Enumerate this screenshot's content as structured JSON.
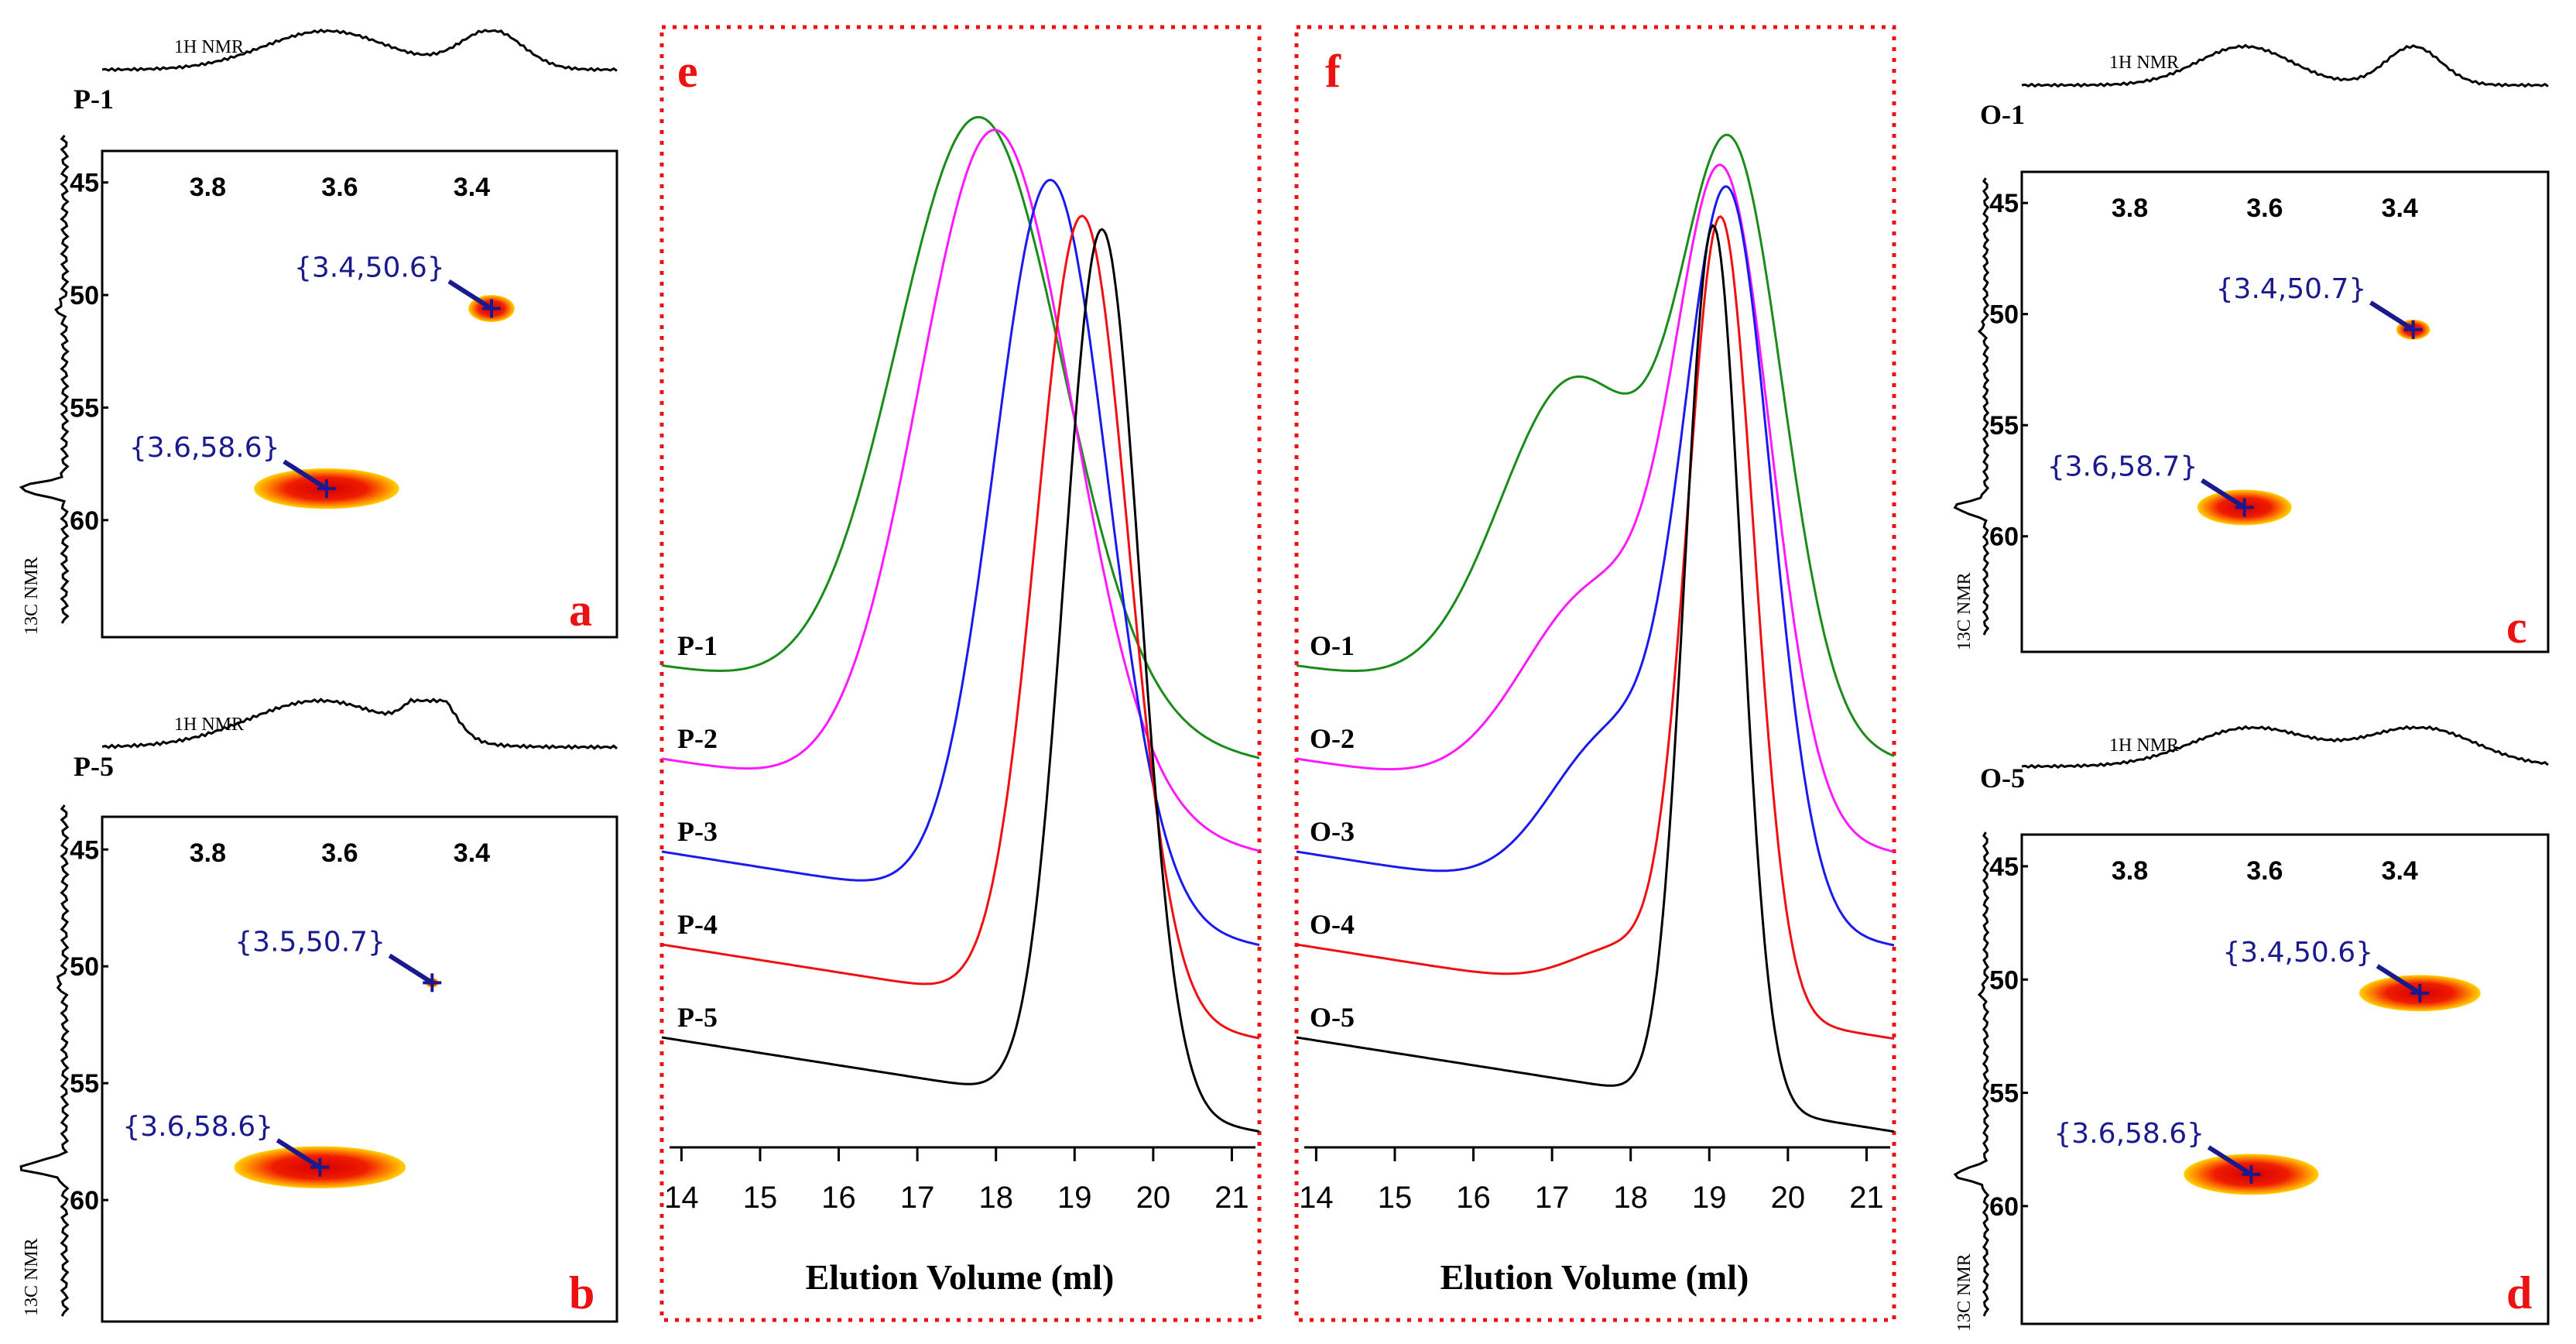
{
  "chart_data": [
    {
      "id": "a",
      "type": "heatmap",
      "title": "P-1",
      "panel_letter": "a",
      "xlabel": "1H NMR",
      "ylabel": "13C NMR",
      "x_ticks": [
        "3.8",
        "3.6",
        "3.4"
      ],
      "y_ticks": [
        "45",
        "50",
        "55",
        "60"
      ],
      "xlim": [
        3.96,
        3.18
      ],
      "ylim": [
        43.6,
        65.2
      ],
      "peaks": [
        {
          "label": "{3.4,50.6}",
          "x": 3.37,
          "y": 50.6,
          "spread_x": 0.035,
          "spread_y": 0.6
        },
        {
          "label": "{3.6,58.6}",
          "x": 3.62,
          "y": 58.6,
          "spread_x": 0.11,
          "spread_y": 0.9
        }
      ]
    },
    {
      "id": "b",
      "type": "heatmap",
      "title": "P-5",
      "panel_letter": "b",
      "xlabel": "1H NMR",
      "ylabel": "13C NMR",
      "x_ticks": [
        "3.8",
        "3.6",
        "3.4"
      ],
      "y_ticks": [
        "45",
        "50",
        "55",
        "60"
      ],
      "xlim": [
        3.96,
        3.18
      ],
      "ylim": [
        43.6,
        65.2
      ],
      "peaks": [
        {
          "label": "{3.5,50.7}",
          "x": 3.46,
          "y": 50.7,
          "spread_x": 0.01,
          "spread_y": 0.2
        },
        {
          "label": "{3.6,58.6}",
          "x": 3.63,
          "y": 58.6,
          "spread_x": 0.13,
          "spread_y": 0.9
        }
      ]
    },
    {
      "id": "c",
      "type": "heatmap",
      "title": "O-1",
      "panel_letter": "c",
      "xlabel": "1H NMR",
      "ylabel": "13C NMR",
      "x_ticks": [
        "3.8",
        "3.6",
        "3.4"
      ],
      "y_ticks": [
        "45",
        "50",
        "55",
        "60"
      ],
      "xlim": [
        3.96,
        3.18
      ],
      "ylim": [
        43.6,
        65.2
      ],
      "peaks": [
        {
          "label": "{3.4,50.7}",
          "x": 3.38,
          "y": 50.7,
          "spread_x": 0.025,
          "spread_y": 0.45
        },
        {
          "label": "{3.6,58.7}",
          "x": 3.63,
          "y": 58.7,
          "spread_x": 0.07,
          "spread_y": 0.8
        }
      ]
    },
    {
      "id": "d",
      "type": "heatmap",
      "title": "O-5",
      "panel_letter": "d",
      "xlabel": "1H NMR",
      "ylabel": "13C NMR",
      "x_ticks": [
        "3.8",
        "3.6",
        "3.4"
      ],
      "y_ticks": [
        "45",
        "50",
        "55",
        "60"
      ],
      "xlim": [
        3.96,
        3.18
      ],
      "ylim": [
        43.6,
        65.2
      ],
      "peaks": [
        {
          "label": "{3.4,50.6}",
          "x": 3.37,
          "y": 50.6,
          "spread_x": 0.09,
          "spread_y": 0.8
        },
        {
          "label": "{3.6,58.6}",
          "x": 3.62,
          "y": 58.6,
          "spread_x": 0.1,
          "spread_y": 0.9
        }
      ]
    },
    {
      "id": "e",
      "type": "line",
      "panel_letter": "e",
      "xlabel": "Elution Volume (ml)",
      "x_ticks": [
        14,
        15,
        16,
        17,
        18,
        19,
        20,
        21
      ],
      "xlim": [
        13.75,
        21.35
      ],
      "series": [
        {
          "name": "P-1",
          "color": "#1a8c1a",
          "baseline": 0.45,
          "peak_height": 1.03,
          "components": [
            {
              "center": 17.8,
              "width": 1.05,
              "amp": 1.0
            }
          ]
        },
        {
          "name": "P-2",
          "color": "#ff19ff",
          "baseline": 0.36,
          "peak_height": 1.02,
          "components": [
            {
              "center": 18.0,
              "width": 0.98,
              "amp": 1.0
            }
          ]
        },
        {
          "name": "P-3",
          "color": "#1a1aee",
          "baseline": 0.27,
          "peak_height": 0.98,
          "components": [
            {
              "center": 18.7,
              "width": 0.72,
              "amp": 1.0
            }
          ]
        },
        {
          "name": "P-4",
          "color": "#ee1111",
          "baseline": 0.18,
          "peak_height": 0.95,
          "components": [
            {
              "center": 19.1,
              "width": 0.58,
              "amp": 1.0
            }
          ]
        },
        {
          "name": "P-5",
          "color": "#000000",
          "baseline": 0.09,
          "peak_height": 0.94,
          "components": [
            {
              "center": 19.35,
              "width": 0.48,
              "amp": 1.0
            }
          ]
        }
      ]
    },
    {
      "id": "f",
      "type": "line",
      "panel_letter": "f",
      "xlabel": "Elution Volume (ml)",
      "x_ticks": [
        14,
        15,
        16,
        17,
        18,
        19,
        20,
        21
      ],
      "xlim": [
        13.75,
        21.35
      ],
      "series": [
        {
          "name": "O-1",
          "color": "#1a8c1a",
          "baseline": 0.45,
          "peak_height": 1.03,
          "components": [
            {
              "center": 19.3,
              "width": 0.65,
              "amp": 0.82
            },
            {
              "center": 17.3,
              "width": 0.95,
              "amp": 0.48
            }
          ]
        },
        {
          "name": "O-2",
          "color": "#ff19ff",
          "baseline": 0.36,
          "peak_height": 1.0,
          "components": [
            {
              "center": 19.2,
              "width": 0.6,
              "amp": 0.85
            },
            {
              "center": 17.6,
              "width": 0.95,
              "amp": 0.3
            }
          ]
        },
        {
          "name": "O-3",
          "color": "#1a1aee",
          "baseline": 0.27,
          "peak_height": 0.98,
          "components": [
            {
              "center": 19.25,
              "width": 0.55,
              "amp": 0.85
            },
            {
              "center": 17.8,
              "width": 0.8,
              "amp": 0.2
            }
          ]
        },
        {
          "name": "O-4",
          "color": "#ee1111",
          "baseline": 0.18,
          "peak_height": 0.95,
          "components": [
            {
              "center": 19.15,
              "width": 0.42,
              "amp": 0.95
            },
            {
              "center": 18.0,
              "width": 0.7,
              "amp": 0.06
            }
          ]
        },
        {
          "name": "O-5",
          "color": "#000000",
          "baseline": 0.09,
          "peak_height": 0.94,
          "components": [
            {
              "center": 19.05,
              "width": 0.36,
              "amp": 1.0
            }
          ]
        }
      ]
    }
  ]
}
